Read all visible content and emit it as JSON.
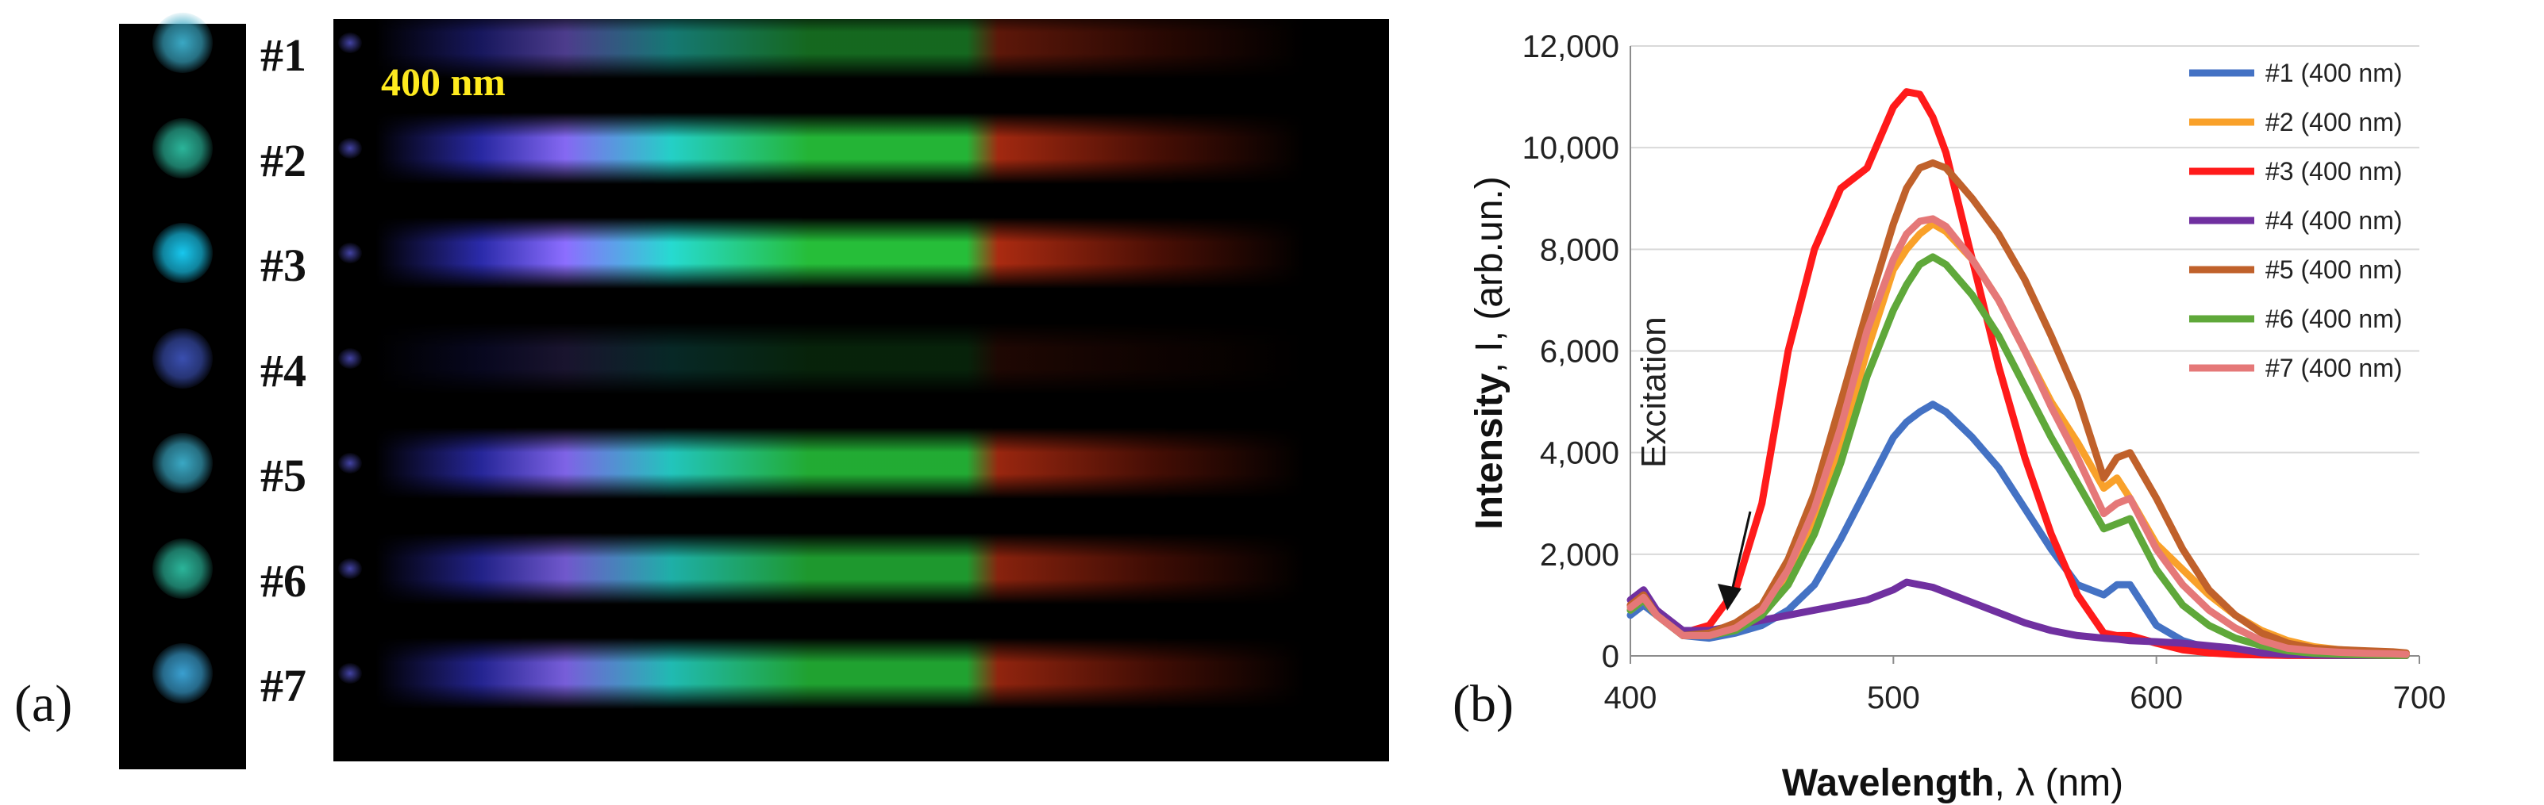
{
  "panel_a": {
    "label": "(a)",
    "photo_label": "400 nm",
    "samples": [
      {
        "label": "#1",
        "dot_color": "#3aa8c4",
        "intensity": 0.55
      },
      {
        "label": "#2",
        "dot_color": "#2bb59a",
        "intensity": 0.95
      },
      {
        "label": "#3",
        "dot_color": "#18c7ee",
        "intensity": 1.0
      },
      {
        "label": "#4",
        "dot_color": "#3a4fb0",
        "intensity": 0.18
      },
      {
        "label": "#5",
        "dot_color": "#3aa8c4",
        "intensity": 0.9
      },
      {
        "label": "#6",
        "dot_color": "#2bb59a",
        "intensity": 0.8
      },
      {
        "label": "#7",
        "dot_color": "#3a9fd0",
        "intensity": 0.85
      }
    ]
  },
  "panel_b": {
    "label": "(b)",
    "annotation": "Excitation"
  },
  "chart_data": {
    "type": "line",
    "xlabel_bold": "Wavelength",
    "xlabel_rest": ", λ (nm)",
    "ylabel_bold": "Intensity",
    "ylabel_rest": ", I, (arb.un.)",
    "xlim": [
      400,
      700
    ],
    "ylim": [
      0,
      12000
    ],
    "x_ticks": [
      "400",
      "500",
      "600",
      "700"
    ],
    "y_ticks": [
      "0",
      "2,000",
      "4,000",
      "6,000",
      "8,000",
      "10,000",
      "12,000"
    ],
    "grid": "horizontal",
    "legend_position": "top-right",
    "x": [
      400,
      405,
      410,
      420,
      430,
      440,
      450,
      460,
      470,
      480,
      490,
      500,
      505,
      510,
      515,
      520,
      530,
      540,
      550,
      560,
      570,
      580,
      585,
      590,
      600,
      610,
      620,
      630,
      640,
      650,
      660,
      670,
      680,
      690,
      695
    ],
    "series": [
      {
        "name": "#1 (400 nm)",
        "color": "#4472c4",
        "values": [
          800,
          1000,
          800,
          400,
          350,
          450,
          600,
          900,
          1400,
          2300,
          3300,
          4300,
          4600,
          4800,
          4950,
          4800,
          4300,
          3700,
          2900,
          2100,
          1400,
          1200,
          1400,
          1400,
          600,
          300,
          150,
          60,
          30,
          20,
          10,
          10,
          10,
          10,
          10
        ]
      },
      {
        "name": "#2 (400 nm)",
        "color": "#f9a12a",
        "values": [
          900,
          1100,
          800,
          400,
          400,
          550,
          850,
          1600,
          2700,
          4200,
          6000,
          7600,
          8000,
          8300,
          8500,
          8350,
          7800,
          7000,
          6000,
          5000,
          4200,
          3300,
          3500,
          3100,
          2200,
          1700,
          1200,
          800,
          500,
          300,
          180,
          120,
          90,
          60,
          50
        ]
      },
      {
        "name": "#3 (400 nm)",
        "color": "#ff1a1a",
        "values": [
          1000,
          1200,
          900,
          450,
          600,
          1300,
          3000,
          6000,
          8000,
          9200,
          9600,
          10800,
          11100,
          11050,
          10600,
          9900,
          7800,
          5700,
          3900,
          2400,
          1200,
          450,
          400,
          400,
          250,
          120,
          60,
          30,
          20,
          10,
          10,
          10,
          10,
          10,
          10
        ]
      },
      {
        "name": "#4 (400 nm)",
        "color": "#7030a0",
        "values": [
          1100,
          1300,
          900,
          500,
          500,
          600,
          700,
          800,
          900,
          1000,
          1100,
          1300,
          1450,
          1400,
          1350,
          1250,
          1050,
          850,
          650,
          500,
          400,
          350,
          330,
          300,
          280,
          250,
          200,
          150,
          60,
          30,
          20,
          10,
          10,
          10,
          10
        ]
      },
      {
        "name": "#5 (400 nm)",
        "color": "#c0612b",
        "values": [
          1000,
          1200,
          800,
          400,
          450,
          650,
          1000,
          1900,
          3200,
          5000,
          6800,
          8500,
          9200,
          9600,
          9700,
          9600,
          9000,
          8300,
          7400,
          6300,
          5100,
          3500,
          3900,
          4000,
          3100,
          2100,
          1300,
          800,
          450,
          250,
          150,
          120,
          100,
          80,
          60
        ]
      },
      {
        "name": "#6 (400 nm)",
        "color": "#5fa83a",
        "values": [
          900,
          1100,
          800,
          400,
          400,
          500,
          800,
          1400,
          2400,
          3800,
          5500,
          6800,
          7300,
          7700,
          7850,
          7700,
          7100,
          6300,
          5300,
          4300,
          3400,
          2500,
          2600,
          2700,
          1700,
          1000,
          600,
          350,
          200,
          100,
          50,
          30,
          20,
          10,
          10
        ]
      },
      {
        "name": "#7 (400 nm)",
        "color": "#e57878",
        "values": [
          950,
          1150,
          800,
          400,
          400,
          550,
          900,
          1700,
          2900,
          4500,
          6400,
          7800,
          8300,
          8550,
          8600,
          8450,
          7800,
          7000,
          6000,
          4900,
          3900,
          2800,
          3000,
          3100,
          2100,
          1400,
          900,
          550,
          300,
          150,
          100,
          70,
          50,
          40,
          30
        ]
      }
    ]
  }
}
